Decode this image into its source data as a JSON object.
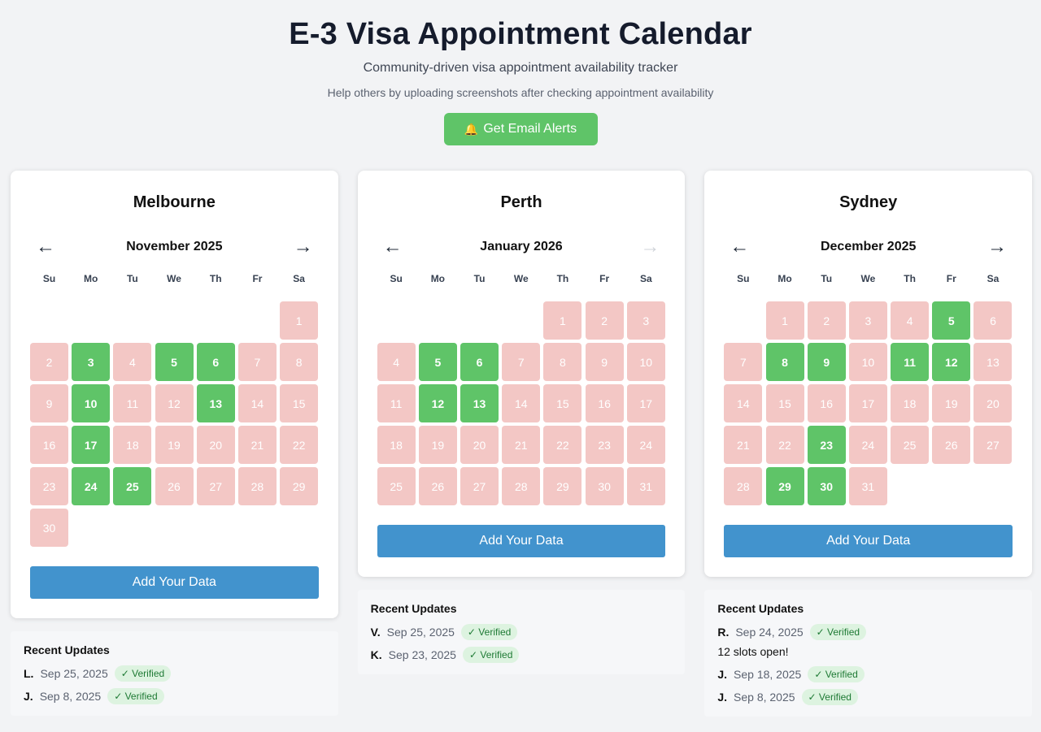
{
  "header": {
    "title": "E-3 Visa Appointment Calendar",
    "subtitle": "Community-driven visa appointment availability tracker",
    "help": "Help others by uploading screenshots after checking appointment availability",
    "alert_icon": "🔔",
    "alert_label": "Get Email Alerts"
  },
  "colors": {
    "available": "#5fc468",
    "unavailable": "#f3c7c5",
    "primary": "#4293cd"
  },
  "weekdays": [
    "Su",
    "Mo",
    "Tu",
    "We",
    "Th",
    "Fr",
    "Sa"
  ],
  "nav_icons": {
    "prev": "←",
    "next": "→"
  },
  "calendars": [
    {
      "city": "Melbourne",
      "month": "November 2025",
      "next_disabled": false,
      "first_weekday": 6,
      "days_in_month": 30,
      "available": [
        3,
        5,
        6,
        10,
        13,
        17,
        24,
        25
      ],
      "add_label": "Add Your Data",
      "updates_title": "Recent Updates",
      "updates": [
        {
          "initial": "L.",
          "date": "Sep 25, 2025",
          "badge": "✓ Verified"
        },
        {
          "initial": "J.",
          "date": "Sep 8, 2025",
          "badge": "✓ Verified"
        }
      ]
    },
    {
      "city": "Perth",
      "month": "January 2026",
      "next_disabled": true,
      "first_weekday": 4,
      "days_in_month": 31,
      "available": [
        5,
        6,
        12,
        13
      ],
      "add_label": "Add Your Data",
      "updates_title": "Recent Updates",
      "updates": [
        {
          "initial": "V.",
          "date": "Sep 25, 2025",
          "badge": "✓ Verified"
        },
        {
          "initial": "K.",
          "date": "Sep 23, 2025",
          "badge": "✓ Verified"
        }
      ]
    },
    {
      "city": "Sydney",
      "month": "December 2025",
      "next_disabled": false,
      "first_weekday": 1,
      "days_in_month": 31,
      "available": [
        5,
        8,
        9,
        11,
        12,
        23,
        29,
        30
      ],
      "add_label": "Add Your Data",
      "updates_title": "Recent Updates",
      "updates": [
        {
          "initial": "R.",
          "date": "Sep 24, 2025",
          "badge": "✓ Verified",
          "note": "12 slots open!"
        },
        {
          "initial": "J.",
          "date": "Sep 18, 2025",
          "badge": "✓ Verified"
        },
        {
          "initial": "J.",
          "date": "Sep 8, 2025",
          "badge": "✓ Verified"
        }
      ]
    }
  ]
}
